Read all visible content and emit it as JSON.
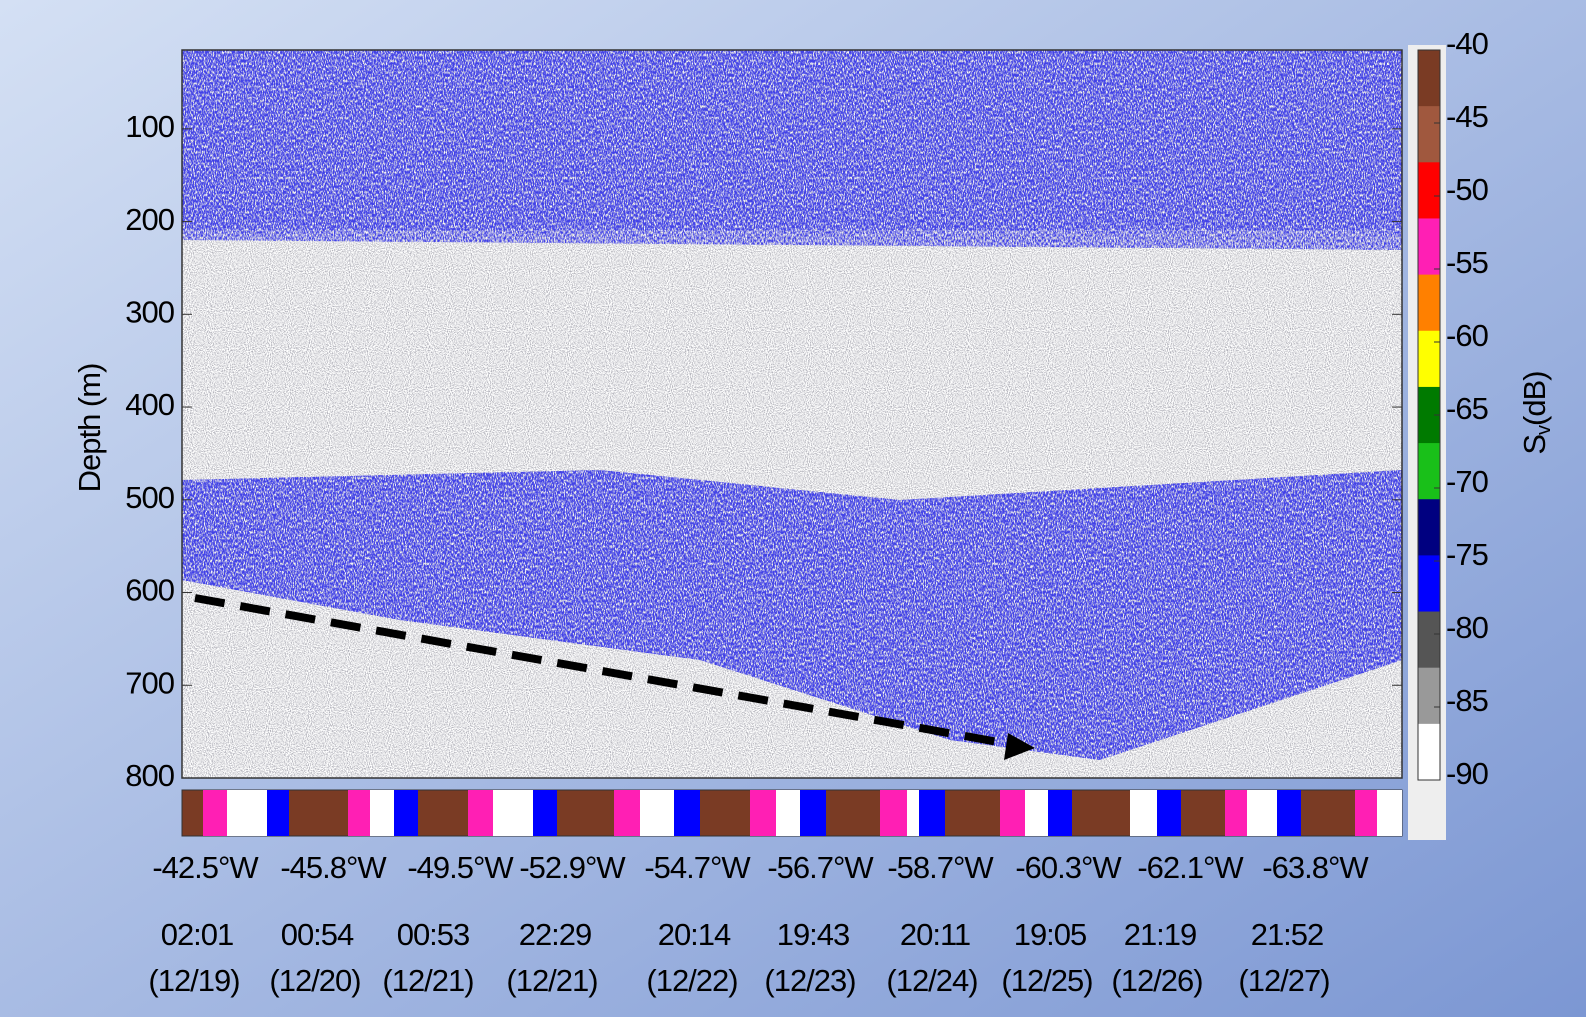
{
  "chart_data": {
    "type": "echogram",
    "y_label": "Depth (m)",
    "ylim": [
      15,
      800
    ],
    "y_inverted": true,
    "yticks": [
      100,
      200,
      300,
      400,
      500,
      600,
      700,
      800
    ],
    "x_longitudes": [
      "-42.5°W",
      "-45.8°W",
      "-49.5°W",
      "-52.9°W",
      "-54.7°W",
      "-56.7°W",
      "-58.7°W",
      "-60.3°W",
      "-62.1°W",
      "-63.8°W"
    ],
    "x_times": [
      "02:01",
      "00:54",
      "00:53",
      "22:29",
      "20:14",
      "19:43",
      "20:11",
      "19:05",
      "21:19",
      "21:52"
    ],
    "x_dates": [
      "(12/19)",
      "(12/20)",
      "(12/21)",
      "(12/21)",
      "(12/22)",
      "(12/23)",
      "(12/24)",
      "(12/25)",
      "(12/26)",
      "(12/27)"
    ],
    "colorbar": {
      "label": "S",
      "label_sub": "v",
      "label_unit": "(dB)",
      "lim": [
        -40,
        -90
      ],
      "ticks": [
        -40,
        -45,
        -50,
        -55,
        -60,
        -65,
        -70,
        -75,
        -80,
        -85,
        -90
      ],
      "colors": [
        "#7a3b24",
        "#a0583e",
        "#ff0000",
        "#ff1fb4",
        "#ff8000",
        "#ffff00",
        "#007a00",
        "#19c019",
        "#000080",
        "#0000ff",
        "#555555",
        "#999999",
        "#ffffff"
      ]
    }
  }
}
